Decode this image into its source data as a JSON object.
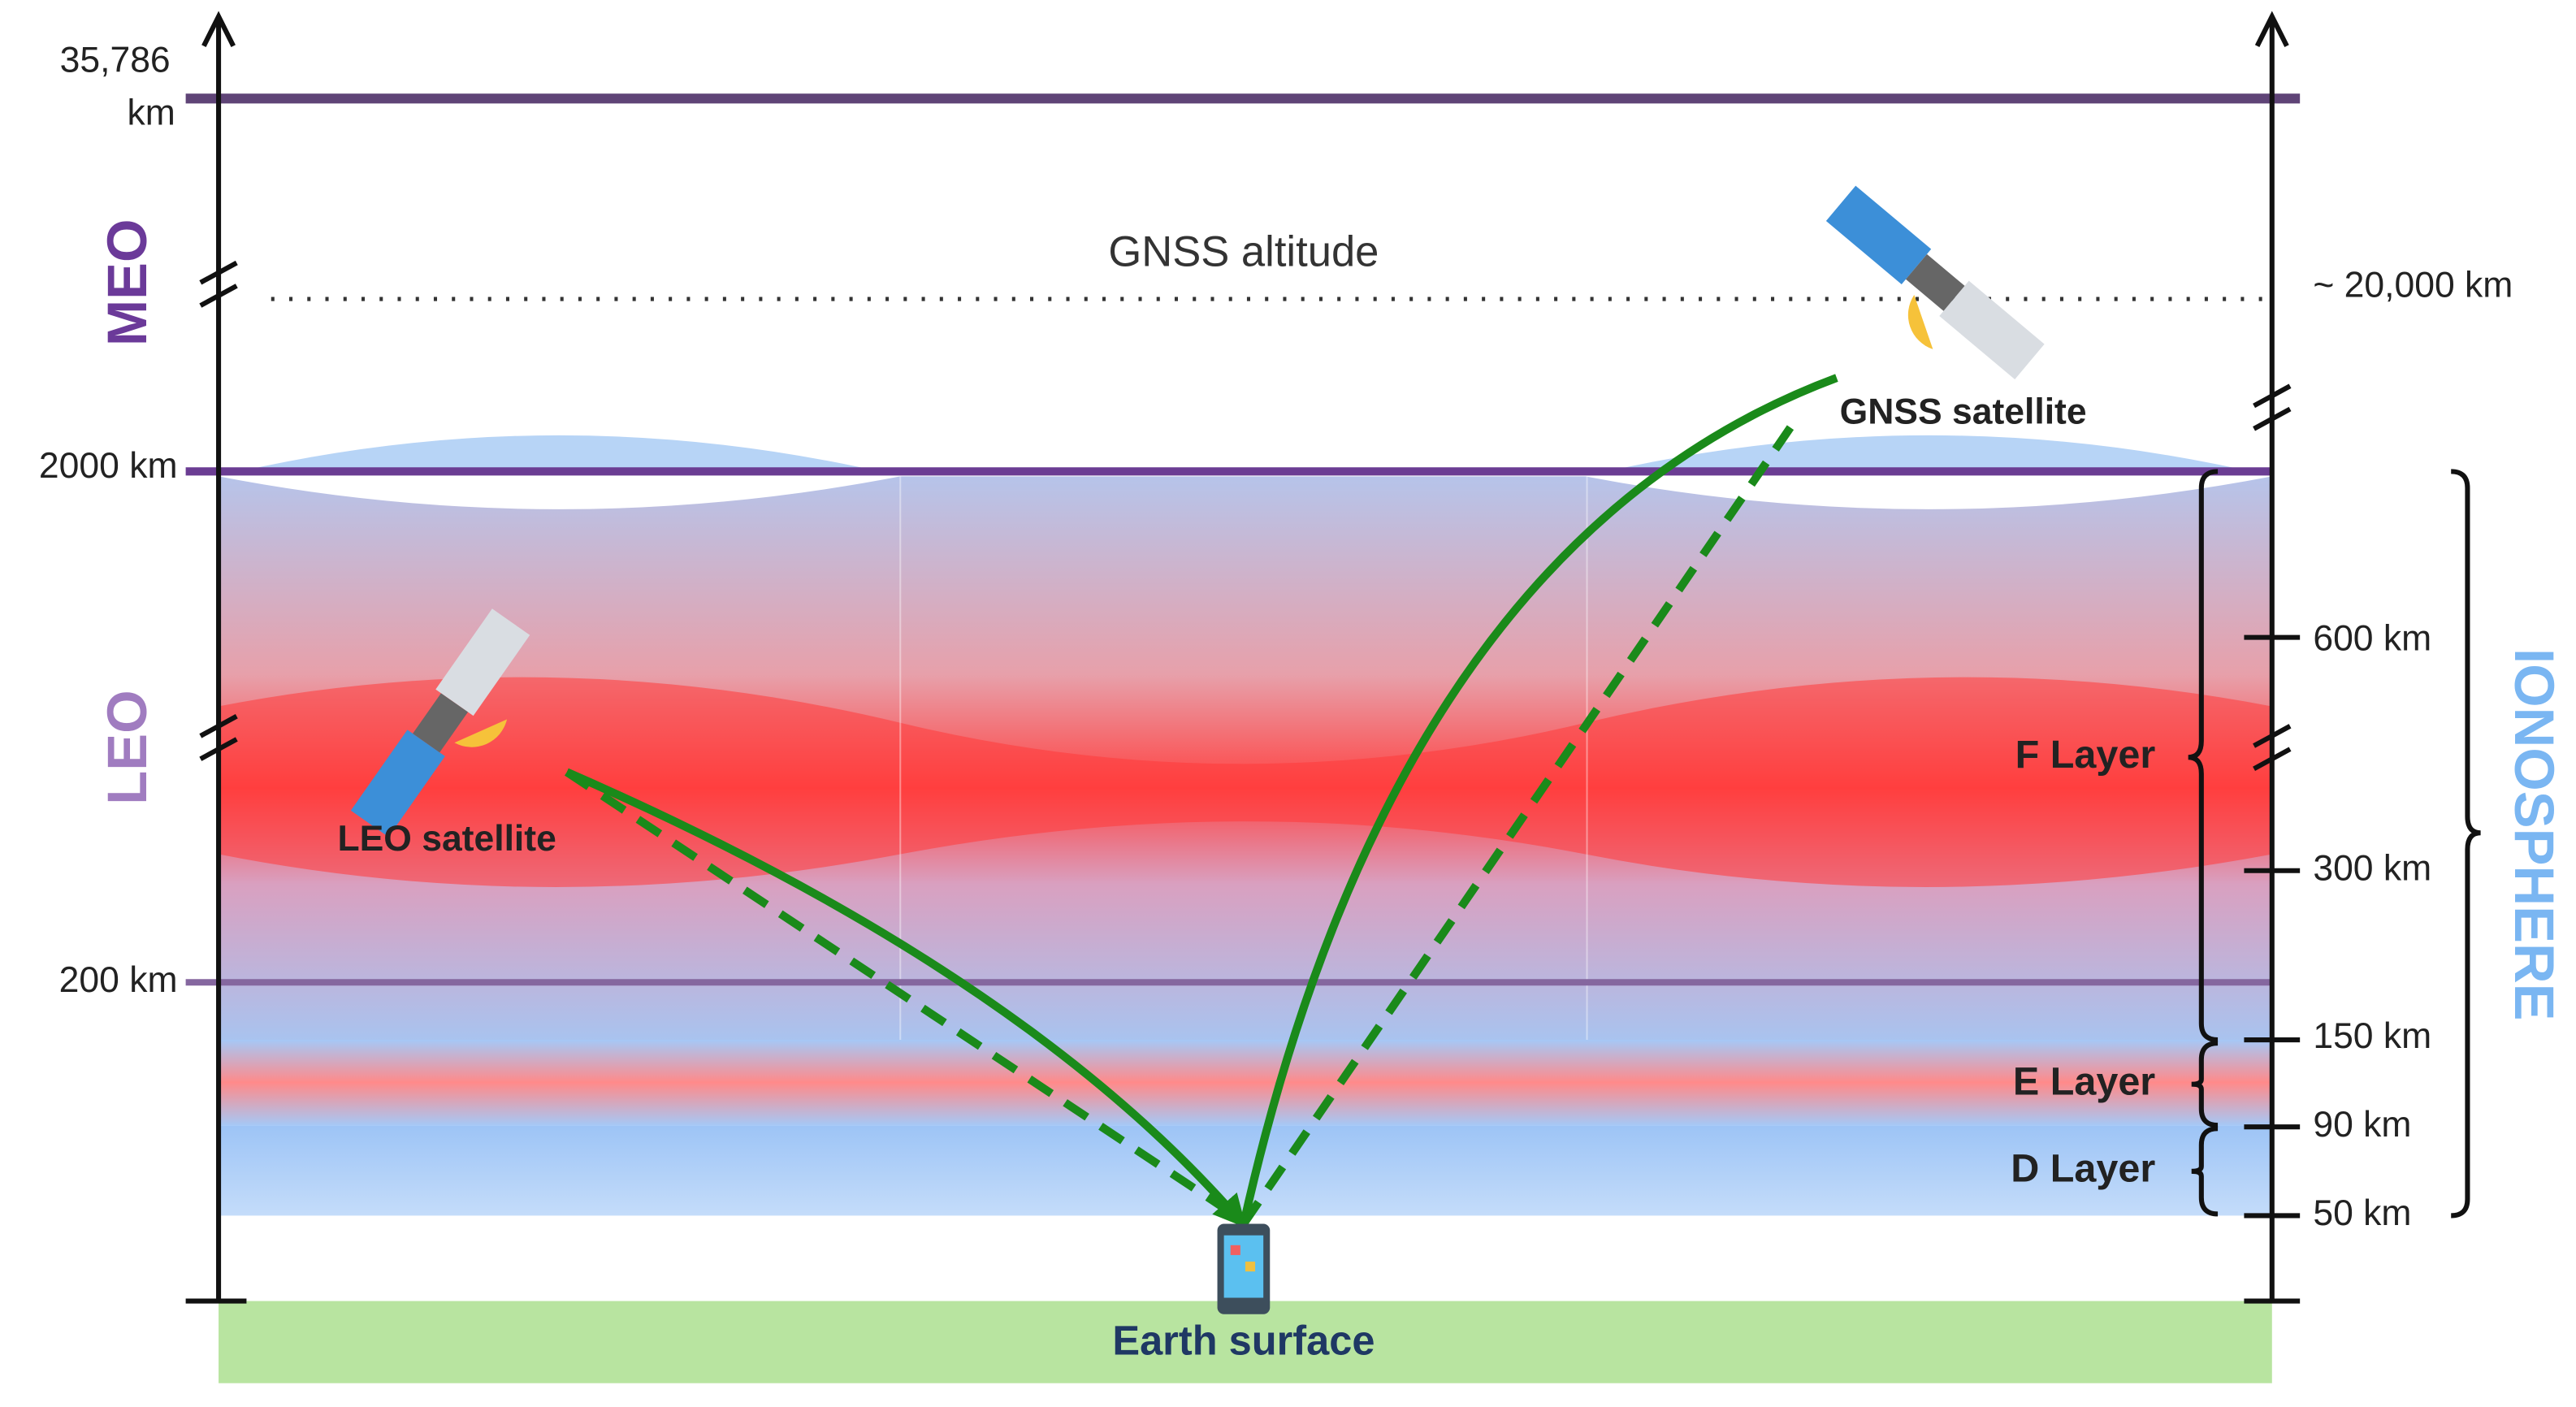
{
  "left_axis": {
    "top_label": {
      "value": "35,786",
      "unit": "km"
    },
    "ticks": [
      "2000 km",
      "200 km"
    ],
    "orbits": [
      "MEO",
      "LEO"
    ]
  },
  "gnss_altitude": {
    "label": "GNSS altitude",
    "height": "~ 20,000 km"
  },
  "right_axis": {
    "ticks": [
      "600 km",
      "300 km",
      "150 km",
      "90 km",
      "50 km"
    ],
    "region": "IONOSPHERE"
  },
  "layers": [
    "F Layer",
    "E Layer",
    "D Layer"
  ],
  "satellites": {
    "gnss": "GNSS satellite",
    "leo": "LEO satellite"
  },
  "ground": "Earth surface"
}
